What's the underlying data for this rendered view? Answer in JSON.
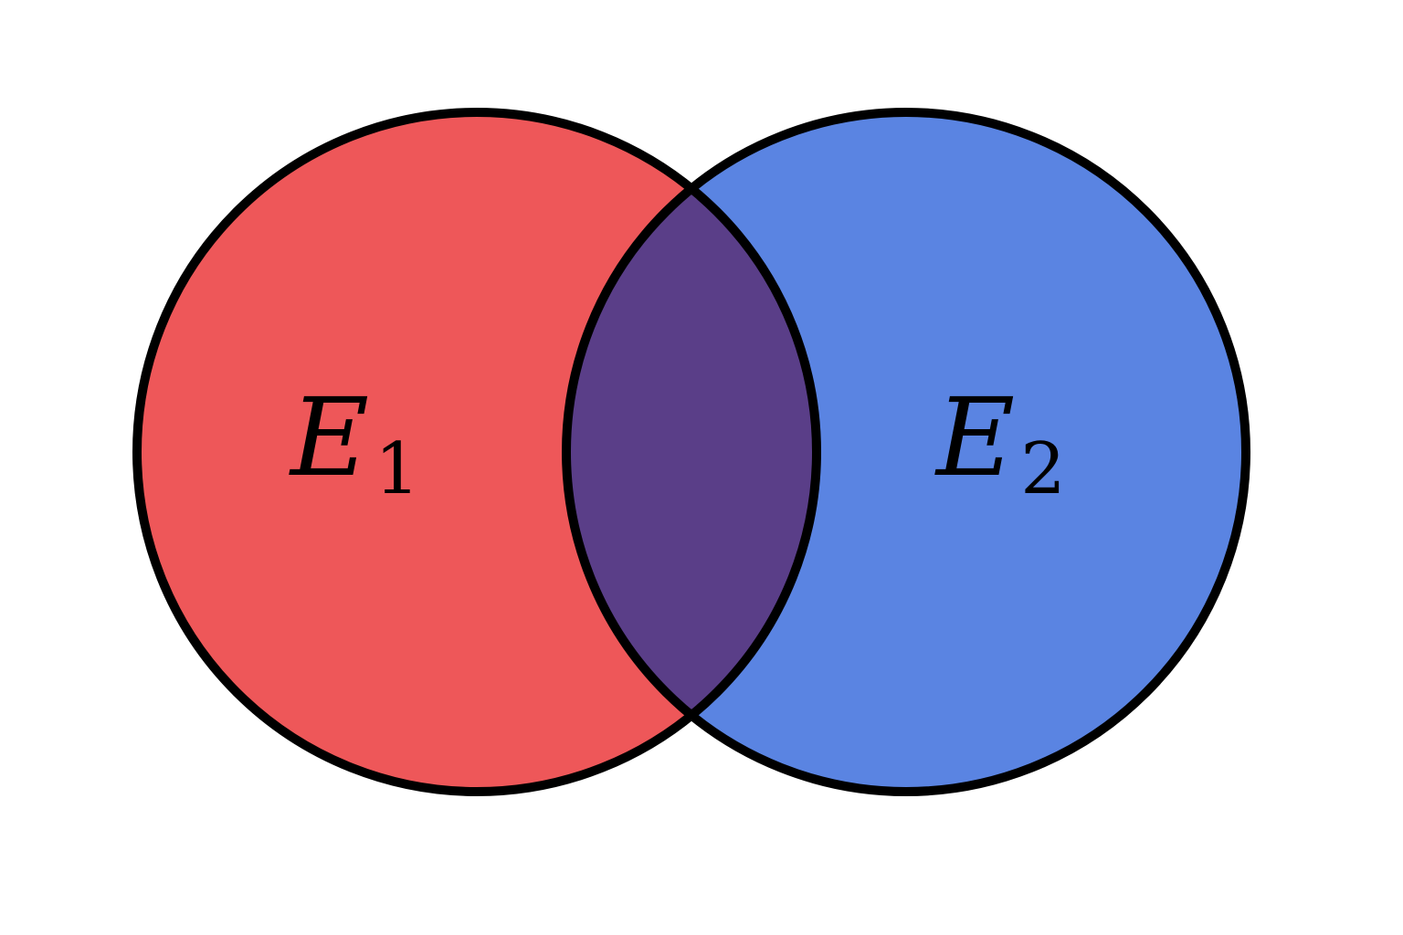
{
  "diagram": {
    "type": "venn",
    "sets": [
      {
        "symbol": "E",
        "subscript": "1",
        "fill": "#EE5759"
      },
      {
        "symbol": "E",
        "subscript": "2",
        "fill": "#5A84E2"
      }
    ],
    "intersection": {
      "fill": "#5A3E88"
    },
    "outline_color": "#000000",
    "background": "#FFFFFF"
  }
}
